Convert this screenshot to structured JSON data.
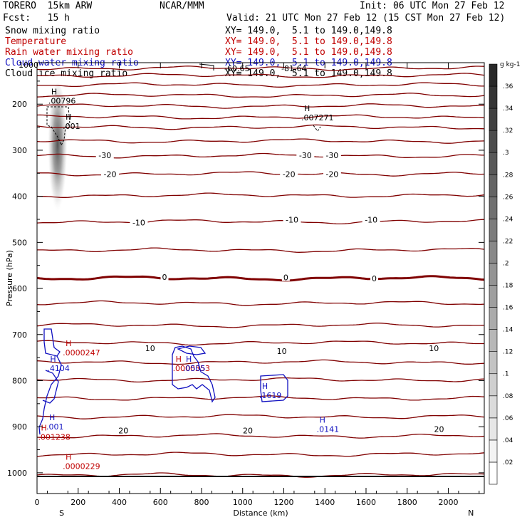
{
  "header": {
    "model": "TORERO  15km ARW",
    "center": "NCAR/MMM",
    "init": "Init: 06 UTC Mon 27 Feb 12",
    "fcst": "Fcst:   15 h",
    "valid": "Valid: 21 UTC Mon 27 Feb 12 (15 CST Mon 27 Feb 12)",
    "fields": [
      {
        "name": "Snow mixing ratio",
        "xy": "XY= 149.0,  5.1 to 149.0,149.8",
        "color": "#000000"
      },
      {
        "name": "Temperature",
        "xy": "XY= 149.0,  5.1 to 149.0,149.8",
        "color": "#c00000"
      },
      {
        "name": "Rain water mixing ratio",
        "xy": "XY= 149.0,  5.1 to 149.0,149.8",
        "color": "#c00000"
      },
      {
        "name": "Cloud water mixing ratio",
        "xy": "XY= 149.0,  5.1 to 149.0,149.8",
        "color": "#1010c0"
      },
      {
        "name": "Cloud ice mixing ratio",
        "xy": "XY= 149.0,  5.1 to 149.0,149.8",
        "color": "#000000"
      }
    ]
  },
  "chart_data": {
    "type": "contour",
    "xlabel": "Distance (km)",
    "ylabel": "Pressure (hPa)",
    "xlim": [
      0,
      2175
    ],
    "ylim": [
      1045,
      110
    ],
    "x_ticks": [
      0,
      200,
      400,
      600,
      800,
      1000,
      1200,
      1400,
      1600,
      1800,
      2000
    ],
    "y_ticks": [
      200,
      300,
      400,
      500,
      600,
      700,
      800,
      900,
      1000
    ],
    "end_labels": {
      "left": "S",
      "right": "N"
    },
    "top_overlap_text": [
      "1000",
      "-60.65",
      "-81.64"
    ],
    "colorbar": {
      "unit": "g kg-1",
      "levels": [
        ".02",
        ".04",
        ".06",
        ".08",
        ".1",
        ".12",
        ".14",
        ".16",
        ".18",
        ".2",
        ".22",
        ".24",
        ".26",
        ".28",
        ".3",
        ".32",
        ".34",
        ".36"
      ]
    },
    "temperature_contours": {
      "color": "#800000",
      "interval_c": 5,
      "zero_line_pressure": 578,
      "level_pressures": [
        122,
        138,
        158,
        181,
        204,
        228,
        250,
        280,
        312,
        351,
        398,
        455,
        517,
        578,
        632,
        680,
        718,
        760,
        798,
        838,
        878,
        920,
        960,
        1005
      ],
      "labels": [
        {
          "text": "-30",
          "x_km": 330,
          "p": 311
        },
        {
          "text": "-30",
          "x_km": 1305,
          "p": 311
        },
        {
          "text": "-30",
          "x_km": 1435,
          "p": 311
        },
        {
          "text": "-20",
          "x_km": 355,
          "p": 352
        },
        {
          "text": "-20",
          "x_km": 1225,
          "p": 352
        },
        {
          "text": "-20",
          "x_km": 1435,
          "p": 352
        },
        {
          "text": "-10",
          "x_km": 495,
          "p": 457
        },
        {
          "text": "-10",
          "x_km": 1240,
          "p": 451
        },
        {
          "text": "-10",
          "x_km": 1625,
          "p": 451
        },
        {
          "text": "0",
          "x_km": 620,
          "p": 575
        },
        {
          "text": "0",
          "x_km": 1210,
          "p": 576
        },
        {
          "text": "0",
          "x_km": 1640,
          "p": 578
        },
        {
          "text": "10",
          "x_km": 550,
          "p": 730
        },
        {
          "text": "10",
          "x_km": 1190,
          "p": 736
        },
        {
          "text": "10",
          "x_km": 1930,
          "p": 730
        },
        {
          "text": "20",
          "x_km": 420,
          "p": 908
        },
        {
          "text": "20",
          "x_km": 1025,
          "p": 908
        },
        {
          "text": "20",
          "x_km": 1955,
          "p": 905
        }
      ]
    },
    "maxima": [
      {
        "field": "cloud ice",
        "text": ".00796",
        "x_km": 55,
        "p": 197,
        "color": "#000000"
      },
      {
        "field": "cloud ice",
        "text": ".001",
        "x_km": 125,
        "p": 252,
        "color": "#000000"
      },
      {
        "field": "cloud ice",
        "text": ".007271",
        "x_km": 1285,
        "p": 234,
        "color": "#000000"
      },
      {
        "field": "rain water",
        "text": ".0000247",
        "x_km": 125,
        "p": 744,
        "color": "#c00000"
      },
      {
        "field": "rain water",
        "text": ".0000353",
        "x_km": 660,
        "p": 778,
        "color": "#c00000"
      },
      {
        "field": "rain water",
        "text": ".001238",
        "x_km": 5,
        "p": 927,
        "color": "#c00000"
      },
      {
        "field": "rain water",
        "text": ".0000229",
        "x_km": 125,
        "p": 990,
        "color": "#c00000"
      },
      {
        "field": "cloud water",
        "text": ".4104",
        "x_km": 50,
        "p": 778,
        "color": "#1010c0"
      },
      {
        "field": "cloud water",
        "text": ".0505",
        "x_km": 710,
        "p": 778,
        "color": "#1010c0"
      },
      {
        "field": "cloud water",
        "text": ".1619",
        "x_km": 1080,
        "p": 836,
        "color": "#1010c0"
      },
      {
        "field": "cloud water",
        "text": ".001",
        "x_km": 45,
        "p": 904,
        "color": "#1010c0"
      },
      {
        "field": "cloud water",
        "text": ".0141",
        "x_km": 1360,
        "p": 910,
        "color": "#1010c0"
      }
    ],
    "snow_shading": {
      "x_km": 100,
      "p_top": 155,
      "p_bottom": 450,
      "max_value": 0.3
    }
  }
}
